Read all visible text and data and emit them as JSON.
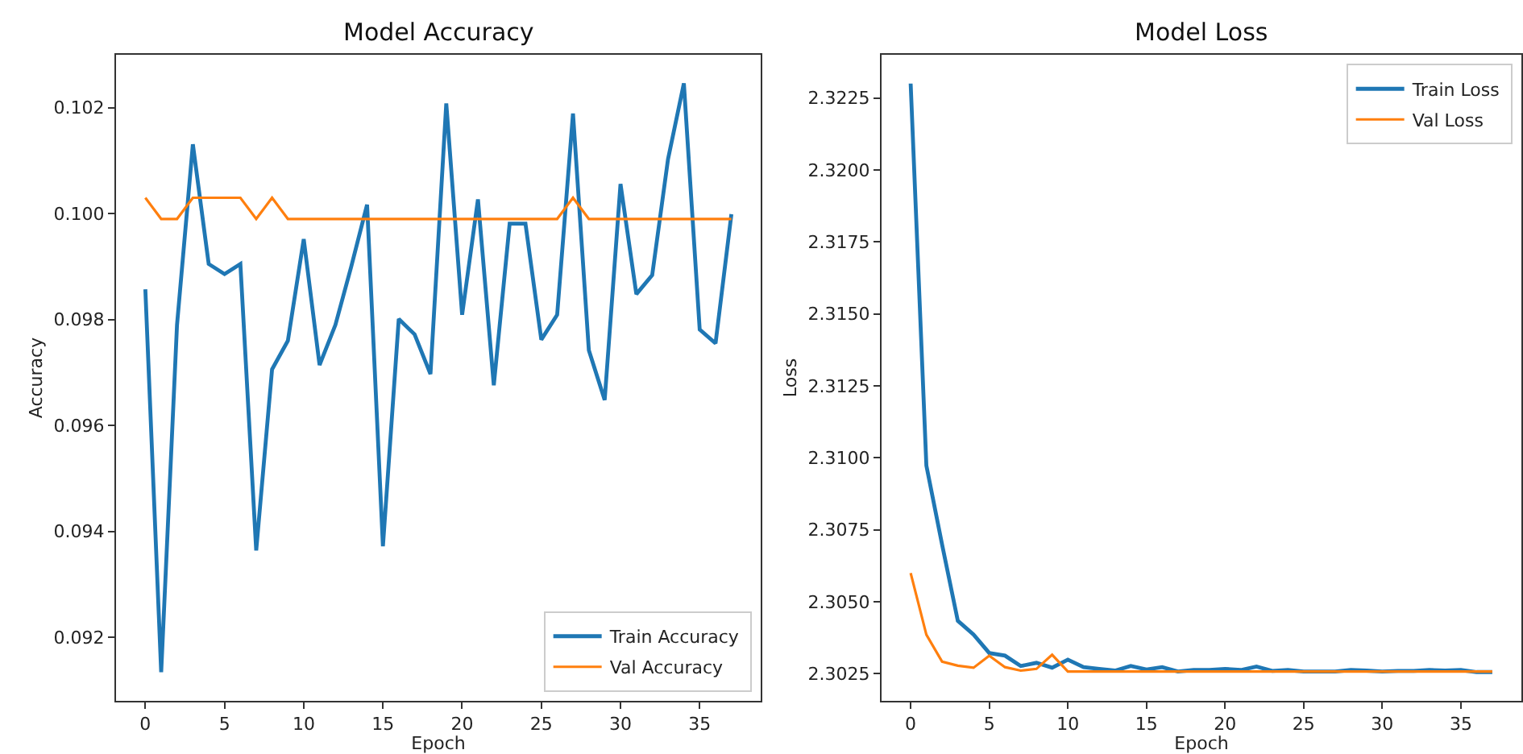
{
  "chart_data": [
    {
      "type": "line",
      "title": "Model Accuracy",
      "xlabel": "Epoch",
      "ylabel": "Accuracy",
      "legend": "bottom right",
      "grid": false,
      "marker": "none",
      "line_style": "solid",
      "x": [
        0,
        1,
        2,
        3,
        4,
        5,
        6,
        7,
        8,
        9,
        10,
        11,
        12,
        13,
        14,
        15,
        16,
        17,
        18,
        19,
        20,
        21,
        22,
        23,
        24,
        25,
        26,
        27,
        28,
        29,
        30,
        31,
        32,
        33,
        34,
        35,
        36,
        37
      ],
      "series": [
        {
          "name": "Train Accuracy",
          "color": "#1f77b4",
          "values": [
            0.09857,
            0.09134,
            0.0979,
            0.10131,
            0.09905,
            0.09886,
            0.09905,
            0.09364,
            0.09706,
            0.0976,
            0.09952,
            0.09714,
            0.0979,
            0.099,
            0.10017,
            0.09372,
            0.09801,
            0.09772,
            0.09697,
            0.10208,
            0.09809,
            0.10027,
            0.09676,
            0.09981,
            0.09981,
            0.09762,
            0.09809,
            0.10189,
            0.09742,
            0.09648,
            0.10056,
            0.09848,
            0.09884,
            0.10103,
            0.10246,
            0.09781,
            0.09755,
            0.09999
          ]
        },
        {
          "name": "Val Accuracy",
          "color": "#ff7f0e",
          "values": [
            0.1003,
            0.0999,
            0.0999,
            0.1003,
            0.1003,
            0.1003,
            0.1003,
            0.0999,
            0.1003,
            0.0999,
            0.0999,
            0.0999,
            0.0999,
            0.0999,
            0.0999,
            0.0999,
            0.0999,
            0.0999,
            0.0999,
            0.0999,
            0.0999,
            0.0999,
            0.0999,
            0.0999,
            0.0999,
            0.0999,
            0.0999,
            0.1003,
            0.0999,
            0.0999,
            0.0999,
            0.0999,
            0.0999,
            0.0999,
            0.0999,
            0.0999,
            0.0999,
            0.0999
          ]
        }
      ],
      "xlim": [
        -1.85,
        38.85
      ],
      "xticks": [
        0,
        5,
        10,
        15,
        20,
        25,
        30,
        35
      ],
      "ylim": [
        0.0908,
        0.103
      ],
      "yticks": [
        {
          "value": 0.092,
          "label": "0.092"
        },
        {
          "value": 0.094,
          "label": "0.094"
        },
        {
          "value": 0.096,
          "label": "0.096"
        },
        {
          "value": 0.098,
          "label": "0.098"
        },
        {
          "value": 0.1,
          "label": "0.100"
        },
        {
          "value": 0.102,
          "label": "0.102"
        }
      ]
    },
    {
      "type": "line",
      "title": "Model Loss",
      "xlabel": "Epoch",
      "ylabel": "Loss",
      "legend": "top right",
      "grid": false,
      "marker": "none",
      "line_style": "solid",
      "x": [
        0,
        1,
        2,
        3,
        4,
        5,
        6,
        7,
        8,
        9,
        10,
        11,
        12,
        13,
        14,
        15,
        16,
        17,
        18,
        19,
        20,
        21,
        22,
        23,
        24,
        25,
        26,
        27,
        28,
        29,
        30,
        31,
        32,
        33,
        34,
        35,
        36,
        37
      ],
      "series": [
        {
          "name": "Train Loss",
          "color": "#1f77b4",
          "values": [
            2.323,
            2.30973,
            2.30699,
            2.30434,
            2.30386,
            2.30322,
            2.30313,
            2.30277,
            2.30288,
            2.30271,
            2.30299,
            2.30273,
            2.30267,
            2.30261,
            2.30277,
            2.30265,
            2.30273,
            2.30258,
            2.30263,
            2.30263,
            2.30267,
            2.30263,
            2.30275,
            2.3026,
            2.30263,
            2.30258,
            2.30258,
            2.30258,
            2.30263,
            2.30261,
            2.30258,
            2.3026,
            2.3026,
            2.30263,
            2.30261,
            2.30263,
            2.30256,
            2.30256
          ]
        },
        {
          "name": "Val Loss",
          "color": "#ff7f0e",
          "values": [
            2.306,
            2.30386,
            2.30292,
            2.30278,
            2.30271,
            2.30313,
            2.30273,
            2.30261,
            2.30267,
            2.30316,
            2.30258,
            2.30258,
            2.30258,
            2.30258,
            2.30258,
            2.30258,
            2.30258,
            2.30258,
            2.30258,
            2.30258,
            2.30258,
            2.30258,
            2.30258,
            2.30258,
            2.30258,
            2.30258,
            2.30258,
            2.30258,
            2.30258,
            2.30258,
            2.30258,
            2.30258,
            2.30258,
            2.30258,
            2.30258,
            2.30258,
            2.30258,
            2.30258
          ]
        }
      ],
      "xlim": [
        -1.85,
        38.85
      ],
      "xticks": [
        0,
        5,
        10,
        15,
        20,
        25,
        30,
        35
      ],
      "ylim": [
        2.30156,
        2.324
      ],
      "yticks": [
        {
          "value": 2.3025,
          "label": "2.3025"
        },
        {
          "value": 2.305,
          "label": "2.3050"
        },
        {
          "value": 2.3075,
          "label": "2.3075"
        },
        {
          "value": 2.31,
          "label": "2.3100"
        },
        {
          "value": 2.3125,
          "label": "2.3125"
        },
        {
          "value": 2.315,
          "label": "2.3150"
        },
        {
          "value": 2.3175,
          "label": "2.3175"
        },
        {
          "value": 2.32,
          "label": "2.3200"
        },
        {
          "value": 2.3225,
          "label": "2.3225"
        }
      ]
    }
  ]
}
